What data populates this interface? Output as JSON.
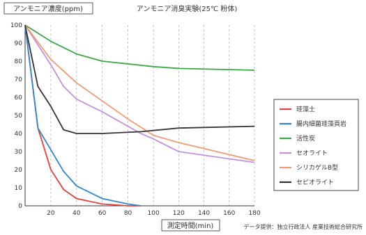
{
  "chart_data": {
    "type": "line",
    "title": "アンモニア消臭実験(25℃ 粉体)",
    "ylabel": "アンモニア濃度(ppm)",
    "xlabel": "測定時間(min)",
    "source": "データ提供：独立行政法人 産業技術総合研究所",
    "x_ticks": [
      20,
      40,
      60,
      80,
      100,
      120,
      140,
      160,
      180
    ],
    "y_ticks": [
      0,
      10,
      20,
      30,
      40,
      50,
      60,
      70,
      80,
      90,
      100
    ],
    "xlim_main": [
      0,
      90
    ],
    "xlim_second": [
      90,
      180
    ],
    "ylim": [
      0,
      100
    ],
    "grid": "vertical-dashed",
    "legend_position": "right",
    "series": [
      {
        "name": "珪藻土",
        "color": "#e8403a",
        "points": [
          [
            0,
            100
          ],
          [
            10,
            43
          ],
          [
            20,
            20
          ],
          [
            30,
            9
          ],
          [
            40,
            4
          ],
          [
            60,
            1
          ],
          [
            80,
            0
          ],
          [
            90,
            0
          ]
        ]
      },
      {
        "name": "腸内細菌珪藻頁岩",
        "color": "#2f86d1",
        "points": [
          [
            0,
            100
          ],
          [
            10,
            43
          ],
          [
            20,
            31
          ],
          [
            30,
            19
          ],
          [
            40,
            11
          ],
          [
            60,
            4
          ],
          [
            80,
            1
          ],
          [
            90,
            0
          ]
        ]
      },
      {
        "name": "活性炭",
        "color": "#3aa845",
        "points": [
          [
            0,
            100
          ],
          [
            20,
            91
          ],
          [
            40,
            84
          ],
          [
            60,
            80
          ],
          [
            100,
            77
          ],
          [
            120,
            76
          ],
          [
            180,
            75
          ]
        ]
      },
      {
        "name": "セオライト",
        "color": "#c490e0",
        "points": [
          [
            0,
            100
          ],
          [
            20,
            78
          ],
          [
            30,
            66
          ],
          [
            40,
            59
          ],
          [
            60,
            52
          ],
          [
            90,
            40
          ],
          [
            100,
            37
          ],
          [
            120,
            30
          ],
          [
            180,
            24
          ]
        ]
      },
      {
        "name": "シリカゲルB型",
        "color": "#f49a6e",
        "points": [
          [
            0,
            100
          ],
          [
            20,
            81
          ],
          [
            40,
            68
          ],
          [
            60,
            58
          ],
          [
            80,
            48
          ],
          [
            100,
            39
          ],
          [
            120,
            35
          ],
          [
            180,
            25
          ]
        ]
      },
      {
        "name": "セピオライト",
        "color": "#333333",
        "points": [
          [
            0,
            100
          ],
          [
            10,
            66
          ],
          [
            20,
            55
          ],
          [
            30,
            42
          ],
          [
            40,
            40
          ],
          [
            60,
            40
          ],
          [
            90,
            41
          ],
          [
            120,
            43
          ],
          [
            180,
            44
          ]
        ]
      }
    ]
  }
}
